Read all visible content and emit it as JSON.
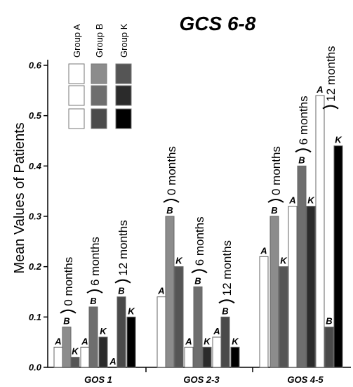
{
  "chart_data": {
    "type": "bar",
    "title": "GCS 6-8",
    "ylabel": "Mean Values of Patients",
    "ylim": [
      0,
      0.6
    ],
    "yticks": [
      "0.0",
      "0.1",
      "0.2",
      "0.3",
      "0.4",
      "0.5",
      "0.6"
    ],
    "categories": [
      "GOS 1",
      "GOS 2-3",
      "GOS 4-5"
    ],
    "time_points": [
      "0 months",
      "6 months",
      "12 months"
    ],
    "series": [
      {
        "name": "Group A",
        "short": "A",
        "values": [
          [
            0.04,
            0.04,
            0.0
          ],
          [
            0.14,
            0.04,
            0.06
          ],
          [
            0.22,
            0.32,
            0.54
          ]
        ]
      },
      {
        "name": "Group B",
        "short": "B",
        "values": [
          [
            0.08,
            0.12,
            0.14
          ],
          [
            0.3,
            0.16,
            0.1
          ],
          [
            0.3,
            0.4,
            0.08
          ]
        ]
      },
      {
        "name": "Group K",
        "short": "K",
        "values": [
          [
            0.02,
            0.06,
            0.1
          ],
          [
            0.2,
            0.04,
            0.04
          ],
          [
            0.2,
            0.32,
            0.44
          ]
        ]
      }
    ],
    "colors": {
      "A": [
        "#ffffff",
        "#ffffff",
        "#ffffff"
      ],
      "B": [
        "#8c8c8c",
        "#6e6e6e",
        "#4a4a4a"
      ],
      "K": [
        "#555555",
        "#2b2b2b",
        "#000000"
      ]
    },
    "legend": {
      "headers": [
        "Group A",
        "Group B",
        "Group K"
      ],
      "placement": "top-left"
    },
    "grid": false
  }
}
